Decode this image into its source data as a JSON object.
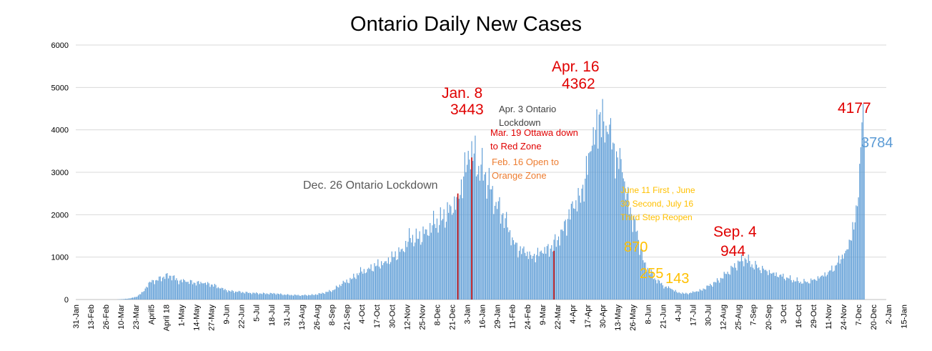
{
  "chart_data": {
    "type": "bar",
    "title": "Ontario Daily New Cases",
    "xlabel": "",
    "ylabel": "",
    "ylim": [
      0,
      6000
    ],
    "yticks": [
      0,
      1000,
      2000,
      3000,
      4000,
      5000,
      6000
    ],
    "x_tick_labels": [
      "31-Jan",
      "13-Feb",
      "26-Feb",
      "10-Mar",
      "23-Mar",
      "April5",
      "April 18",
      "1-May",
      "14-May",
      "27-May",
      "9-Jun",
      "22-Jun",
      "5-Jul",
      "18-Jul",
      "31-Jul",
      "13-Aug",
      "26-Aug",
      "8-Sep",
      "21-Sep",
      "4-Oct",
      "17-Oct",
      "30-Oct",
      "12-Nov",
      "25-Nov",
      "8-Dec",
      "21-Dec",
      "3-Jan",
      "16-Jan",
      "29-Jan",
      "11-Feb",
      "24-Feb",
      "9-Mar",
      "22-Mar",
      "4-Apr",
      "17-Apr",
      "30-Apr",
      "13-May",
      "26-May",
      "8-Jun",
      "21-Jun",
      "4-Jul",
      "17-Jul",
      "30-Jul",
      "12-Aug",
      "25-Aug",
      "7-Sep",
      "20-Sep",
      "3-Oct",
      "16-Oct",
      "29-Oct",
      "11-Nov",
      "24-Nov",
      "7-Dec",
      "20-Dec",
      "2-Jan",
      "15-Jan"
    ],
    "grid": true,
    "bar_color": "#5b9bd5",
    "highlight_color": "#c00000",
    "series_keypoints": [
      [
        0,
        0
      ],
      [
        35,
        0
      ],
      [
        45,
        20
      ],
      [
        52,
        60
      ],
      [
        58,
        180
      ],
      [
        64,
        420
      ],
      [
        70,
        460
      ],
      [
        76,
        540
      ],
      [
        82,
        560
      ],
      [
        88,
        450
      ],
      [
        95,
        420
      ],
      [
        102,
        400
      ],
      [
        110,
        380
      ],
      [
        118,
        350
      ],
      [
        125,
        260
      ],
      [
        133,
        200
      ],
      [
        140,
        180
      ],
      [
        150,
        160
      ],
      [
        160,
        140
      ],
      [
        172,
        140
      ],
      [
        182,
        110
      ],
      [
        195,
        100
      ],
      [
        205,
        110
      ],
      [
        214,
        150
      ],
      [
        222,
        220
      ],
      [
        230,
        370
      ],
      [
        238,
        480
      ],
      [
        245,
        630
      ],
      [
        252,
        720
      ],
      [
        260,
        800
      ],
      [
        267,
        900
      ],
      [
        275,
        1000
      ],
      [
        282,
        1200
      ],
      [
        289,
        1450
      ],
      [
        296,
        1430
      ],
      [
        303,
        1650
      ],
      [
        310,
        1780
      ],
      [
        317,
        1900
      ],
      [
        324,
        2200
      ],
      [
        330,
        2400
      ],
      [
        335,
        2900
      ],
      [
        340,
        3300
      ],
      [
        344,
        3443
      ],
      [
        348,
        3150
      ],
      [
        353,
        2950
      ],
      [
        358,
        2600
      ],
      [
        363,
        2300
      ],
      [
        368,
        2000
      ],
      [
        373,
        1700
      ],
      [
        378,
        1400
      ],
      [
        383,
        1150
      ],
      [
        388,
        1100
      ],
      [
        393,
        1050
      ],
      [
        398,
        1050
      ],
      [
        403,
        1100
      ],
      [
        410,
        1200
      ],
      [
        416,
        1400
      ],
      [
        420,
        1650
      ],
      [
        425,
        1900
      ],
      [
        430,
        2150
      ],
      [
        435,
        2450
      ],
      [
        440,
        2850
      ],
      [
        445,
        3500
      ],
      [
        449,
        4000
      ],
      [
        452,
        4362
      ],
      [
        456,
        4200
      ],
      [
        460,
        3900
      ],
      [
        464,
        3700
      ],
      [
        468,
        3350
      ],
      [
        472,
        3000
      ],
      [
        476,
        2500
      ],
      [
        480,
        2000
      ],
      [
        484,
        1600
      ],
      [
        488,
        1200
      ],
      [
        491,
        870
      ],
      [
        495,
        700
      ],
      [
        500,
        500
      ],
      [
        505,
        380
      ],
      [
        509,
        300
      ],
      [
        514,
        255
      ],
      [
        519,
        180
      ],
      [
        525,
        143
      ],
      [
        530,
        150
      ],
      [
        535,
        180
      ],
      [
        540,
        220
      ],
      [
        547,
        320
      ],
      [
        555,
        450
      ],
      [
        562,
        600
      ],
      [
        568,
        750
      ],
      [
        574,
        900
      ],
      [
        579,
        944
      ],
      [
        584,
        830
      ],
      [
        590,
        760
      ],
      [
        596,
        700
      ],
      [
        602,
        630
      ],
      [
        608,
        580
      ],
      [
        614,
        520
      ],
      [
        620,
        460
      ],
      [
        626,
        420
      ],
      [
        632,
        420
      ],
      [
        638,
        480
      ],
      [
        644,
        560
      ],
      [
        650,
        650
      ],
      [
        656,
        800
      ],
      [
        661,
        950
      ],
      [
        665,
        1150
      ],
      [
        669,
        1400
      ],
      [
        672,
        1650
      ],
      [
        675,
        2200
      ],
      [
        677,
        3200
      ],
      [
        679,
        4177
      ],
      [
        681,
        3784
      ]
    ],
    "highlights": [
      {
        "day": 330,
        "value": 2500
      },
      {
        "day": 342,
        "value": 3350
      },
      {
        "day": 413,
        "value": 1150
      }
    ]
  },
  "annotations": [
    {
      "id": "jan8-date",
      "text": "Jan. 8",
      "color": "#e00000",
      "size": 21
    },
    {
      "id": "jan8-value",
      "text": "3443",
      "color": "#e00000",
      "size": 21
    },
    {
      "id": "apr3",
      "text": "Apr. 3 Ontario",
      "color": "#404040",
      "size": 13
    },
    {
      "id": "apr3b",
      "text": "Lockdown",
      "color": "#404040",
      "size": 13
    },
    {
      "id": "mar19a",
      "text": "Mar. 19 Ottawa down",
      "color": "#e00000",
      "size": 13
    },
    {
      "id": "mar19b",
      "text": "to Red Zone",
      "color": "#e00000",
      "size": 13
    },
    {
      "id": "feb16a",
      "text": "Feb. 16 Open to",
      "color": "#ed7d31",
      "size": 13
    },
    {
      "id": "feb16b",
      "text": "Orange Zone",
      "color": "#ed7d31",
      "size": 13
    },
    {
      "id": "dec26",
      "text": "Dec. 26 Ontario Lockdown",
      "color": "#595959",
      "size": 16
    },
    {
      "id": "apr16-date",
      "text": "Apr. 16",
      "color": "#e00000",
      "size": 21
    },
    {
      "id": "apr16-value",
      "text": "4362",
      "color": "#e00000",
      "size": 21
    },
    {
      "id": "june-a",
      "text": "June 11 First , June",
      "color": "#ffc000",
      "size": 12
    },
    {
      "id": "june-b",
      "text": "30 Second, July 16",
      "color": "#ffc000",
      "size": 12
    },
    {
      "id": "june-c",
      "text": "Third Step Reopen",
      "color": "#ffc000",
      "size": 12
    },
    {
      "id": "v870",
      "text": "870",
      "color": "#ffc000",
      "size": 20
    },
    {
      "id": "v255",
      "text": "255",
      "color": "#ffc000",
      "size": 20
    },
    {
      "id": "v143",
      "text": "143",
      "color": "#ffc000",
      "size": 20
    },
    {
      "id": "sep4-date",
      "text": "Sep. 4",
      "color": "#e00000",
      "size": 21
    },
    {
      "id": "sep4-value",
      "text": "944",
      "color": "#e00000",
      "size": 21
    },
    {
      "id": "v4177",
      "text": "4177",
      "color": "#e00000",
      "size": 21
    },
    {
      "id": "v3784",
      "text": "3784",
      "color": "#5b9bd5",
      "size": 20
    }
  ]
}
